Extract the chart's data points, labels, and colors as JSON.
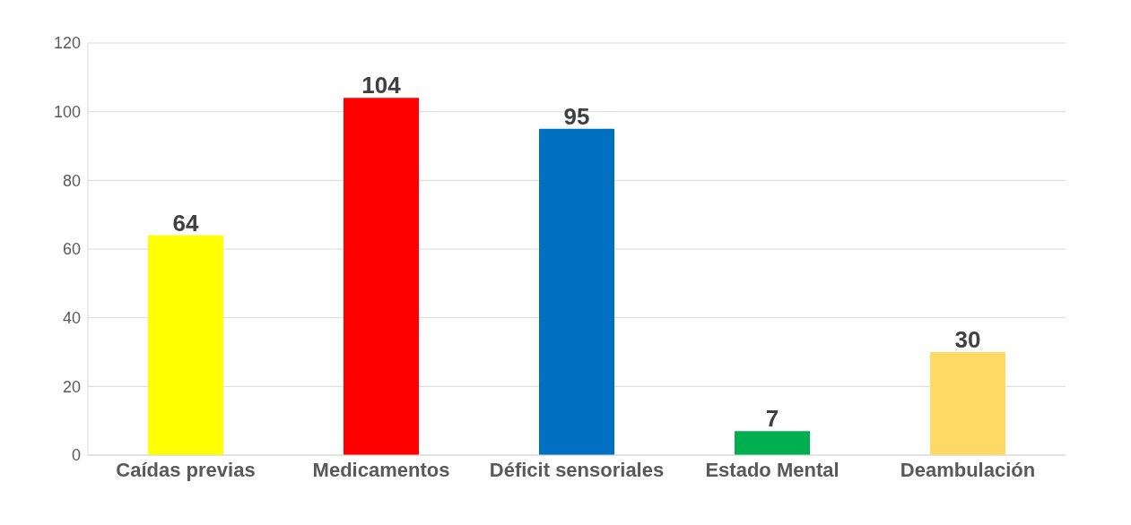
{
  "chart_data": {
    "type": "bar",
    "categories": [
      "Caídas previas",
      "Medicamentos",
      "Déficit sensoriales",
      "Estado Mental",
      "Deambulación"
    ],
    "values": [
      64,
      104,
      95,
      7,
      30
    ],
    "colors": [
      "#ffff00",
      "#ff0000",
      "#0070c0",
      "#00b050",
      "#ffd966"
    ],
    "ylim": [
      0,
      120
    ],
    "yticks": [
      0,
      20,
      40,
      60,
      80,
      100,
      120
    ],
    "grid": "y",
    "data_labels": true
  }
}
